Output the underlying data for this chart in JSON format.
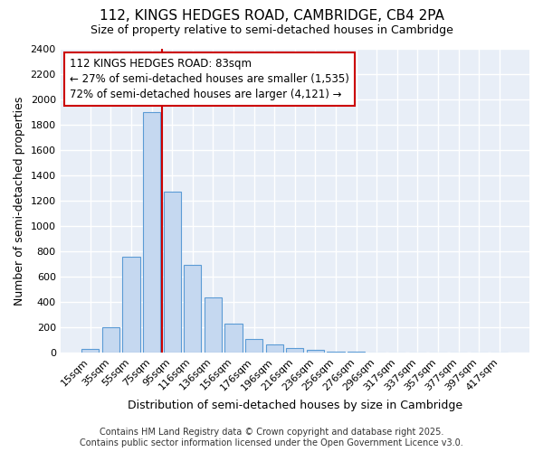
{
  "title": "112, KINGS HEDGES ROAD, CAMBRIDGE, CB4 2PA",
  "subtitle": "Size of property relative to semi-detached houses in Cambridge",
  "xlabel": "Distribution of semi-detached houses by size in Cambridge",
  "ylabel": "Number of semi-detached properties",
  "footer_line1": "Contains HM Land Registry data © Crown copyright and database right 2025.",
  "footer_line2": "Contains public sector information licensed under the Open Government Licence v3.0.",
  "bar_labels": [
    "15sqm",
    "35sqm",
    "55sqm",
    "75sqm",
    "95sqm",
    "116sqm",
    "136sqm",
    "156sqm",
    "176sqm",
    "196sqm",
    "216sqm",
    "236sqm",
    "256sqm",
    "276sqm",
    "296sqm",
    "317sqm",
    "337sqm",
    "357sqm",
    "377sqm",
    "397sqm",
    "417sqm"
  ],
  "bar_values": [
    25,
    200,
    760,
    1900,
    1270,
    690,
    435,
    230,
    110,
    65,
    35,
    20,
    5,
    3,
    2,
    1,
    0,
    0,
    0,
    0,
    0
  ],
  "bar_color": "#c5d8f0",
  "bar_edge_color": "#5b9bd5",
  "bg_color": "#ffffff",
  "plot_bg_color": "#e8eef7",
  "grid_color": "#ffffff",
  "vline_color": "#cc0000",
  "vline_pos": 3.5,
  "annotation_line1": "112 KINGS HEDGES ROAD: 83sqm",
  "annotation_line2": "← 27% of semi-detached houses are smaller (1,535)",
  "annotation_line3": "72% of semi-detached houses are larger (4,121) →",
  "ann_box_edge": "#cc0000",
  "ann_box_face": "#ffffff",
  "ylim": [
    0,
    2400
  ],
  "yticks": [
    0,
    200,
    400,
    600,
    800,
    1000,
    1200,
    1400,
    1600,
    1800,
    2000,
    2200,
    2400
  ],
  "title_fontsize": 11,
  "subtitle_fontsize": 9,
  "ylabel_fontsize": 9,
  "xlabel_fontsize": 9,
  "tick_fontsize": 8,
  "footer_fontsize": 7
}
